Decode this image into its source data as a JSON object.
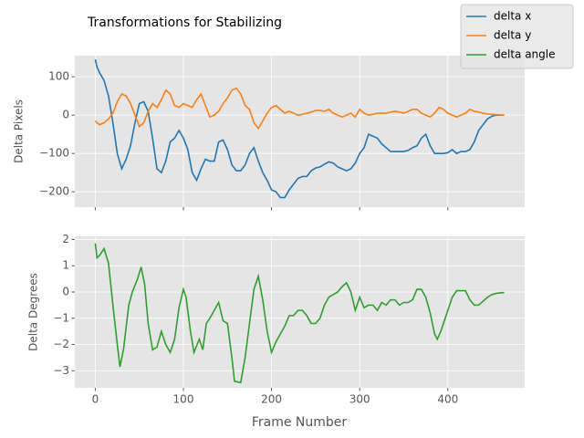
{
  "chart_data": [
    {
      "type": "line",
      "title": "Transformations for Stabilizing",
      "y_label": "Delta Pixels",
      "legend": "upper right",
      "grid": true,
      "xlim": [
        -23.2,
        487.2
      ],
      "xticks": [
        0,
        100,
        200,
        300,
        400
      ],
      "ylim": [
        -240,
        155
      ],
      "yticks": [
        {
          "value": -200,
          "label": "−200"
        },
        {
          "value": -100,
          "label": "−100"
        },
        0,
        100
      ],
      "x": [
        0,
        2,
        5,
        10,
        15,
        20,
        25,
        30,
        35,
        40,
        45,
        50,
        55,
        60,
        65,
        70,
        75,
        80,
        85,
        90,
        95,
        100,
        105,
        110,
        115,
        120,
        125,
        130,
        135,
        140,
        145,
        150,
        155,
        160,
        165,
        170,
        175,
        180,
        185,
        190,
        195,
        200,
        205,
        210,
        215,
        220,
        225,
        230,
        235,
        240,
        245,
        250,
        255,
        260,
        265,
        270,
        275,
        280,
        285,
        290,
        295,
        300,
        305,
        310,
        315,
        320,
        325,
        330,
        335,
        340,
        345,
        350,
        355,
        360,
        365,
        370,
        375,
        380,
        385,
        390,
        395,
        400,
        405,
        410,
        415,
        420,
        425,
        430,
        435,
        440,
        445,
        450,
        455,
        460,
        464
      ],
      "series": [
        {
          "name": "delta x",
          "color": "#1f77b4",
          "values": [
            145,
            125,
            110,
            90,
            50,
            -20,
            -100,
            -140,
            -115,
            -80,
            -20,
            30,
            35,
            10,
            -60,
            -140,
            -150,
            -120,
            -70,
            -60,
            -40,
            -60,
            -90,
            -150,
            -170,
            -140,
            -115,
            -120,
            -120,
            -70,
            -65,
            -90,
            -130,
            -145,
            -145,
            -130,
            -100,
            -85,
            -120,
            -150,
            -170,
            -195,
            -200,
            -215,
            -215,
            -195,
            -180,
            -165,
            -160,
            -160,
            -145,
            -138,
            -135,
            -128,
            -122,
            -125,
            -135,
            -140,
            -145,
            -140,
            -125,
            -100,
            -85,
            -50,
            -55,
            -60,
            -75,
            -85,
            -95,
            -95,
            -95,
            -95,
            -92,
            -85,
            -80,
            -60,
            -50,
            -80,
            -100,
            -100,
            -100,
            -98,
            -90,
            -100,
            -95,
            -95,
            -90,
            -70,
            -40,
            -25,
            -10,
            -3,
            0,
            0,
            0
          ]
        },
        {
          "name": "delta y",
          "color": "#ff7f0e",
          "values": [
            -15,
            -20,
            -25,
            -20,
            -10,
            5,
            35,
            55,
            50,
            30,
            0,
            -30,
            -20,
            10,
            30,
            20,
            40,
            65,
            55,
            25,
            20,
            30,
            25,
            20,
            40,
            55,
            25,
            -5,
            0,
            10,
            30,
            45,
            65,
            70,
            55,
            25,
            15,
            -20,
            -35,
            -15,
            5,
            20,
            25,
            15,
            5,
            10,
            5,
            0,
            2,
            5,
            8,
            12,
            12,
            10,
            15,
            5,
            0,
            -5,
            0,
            5,
            -5,
            15,
            5,
            0,
            2,
            5,
            5,
            5,
            8,
            10,
            8,
            5,
            10,
            15,
            15,
            5,
            0,
            -5,
            5,
            20,
            15,
            5,
            0,
            -5,
            0,
            5,
            15,
            10,
            8,
            5,
            3,
            2,
            1,
            0,
            0
          ]
        }
      ]
    },
    {
      "type": "line",
      "x_label": "Frame Number",
      "y_label": "Delta Degrees",
      "grid": true,
      "xlim": [
        -23.2,
        487.2
      ],
      "xticks": [
        0,
        100,
        200,
        300,
        400
      ],
      "ylim": [
        -3.65,
        2.12
      ],
      "yticks": [
        {
          "value": -3,
          "label": "−3"
        },
        {
          "value": -2,
          "label": "−2"
        },
        {
          "value": -1,
          "label": "−1"
        },
        0,
        1,
        2
      ],
      "x": [
        0,
        2,
        5,
        10,
        15,
        20,
        25,
        28,
        32,
        38,
        42,
        48,
        52,
        56,
        60,
        65,
        70,
        75,
        80,
        85,
        90,
        95,
        100,
        103,
        108,
        112,
        118,
        122,
        126,
        130,
        135,
        140,
        145,
        150,
        155,
        158,
        165,
        170,
        175,
        180,
        185,
        190,
        195,
        200,
        205,
        210,
        215,
        220,
        225,
        230,
        235,
        240,
        245,
        250,
        255,
        260,
        265,
        270,
        275,
        280,
        285,
        290,
        295,
        300,
        305,
        310,
        315,
        320,
        325,
        330,
        335,
        340,
        345,
        350,
        355,
        360,
        365,
        370,
        375,
        380,
        385,
        388,
        392,
        398,
        405,
        410,
        415,
        420,
        425,
        430,
        435,
        440,
        445,
        450,
        455,
        464
      ],
      "series": [
        {
          "name": "delta angle",
          "color": "#2ca02c",
          "values": [
            1.85,
            1.3,
            1.4,
            1.65,
            1.1,
            -0.5,
            -2.0,
            -2.85,
            -2.2,
            -0.5,
            0,
            0.5,
            0.95,
            0.3,
            -1.2,
            -2.2,
            -2.1,
            -1.5,
            -2.0,
            -2.3,
            -1.8,
            -0.6,
            0.1,
            -0.2,
            -1.5,
            -2.3,
            -1.8,
            -2.2,
            -1.2,
            -1.0,
            -0.7,
            -0.4,
            -1.1,
            -1.2,
            -2.5,
            -3.4,
            -3.45,
            -2.5,
            -1.2,
            0.1,
            0.6,
            -0.3,
            -1.5,
            -2.3,
            -1.9,
            -1.6,
            -1.3,
            -0.9,
            -0.9,
            -0.7,
            -0.7,
            -0.9,
            -1.2,
            -1.2,
            -1.0,
            -0.5,
            -0.2,
            -0.1,
            0,
            0.2,
            0.35,
            0,
            -0.7,
            -0.2,
            -0.6,
            -0.5,
            -0.5,
            -0.7,
            -0.4,
            -0.5,
            -0.3,
            -0.3,
            -0.5,
            -0.4,
            -0.4,
            -0.3,
            0.1,
            0.1,
            -0.2,
            -0.8,
            -1.6,
            -1.8,
            -1.5,
            -0.9,
            -0.2,
            0.05,
            0.05,
            0.05,
            -0.3,
            -0.5,
            -0.5,
            -0.35,
            -0.2,
            -0.1,
            -0.05,
            -0.02
          ]
        }
      ]
    }
  ]
}
